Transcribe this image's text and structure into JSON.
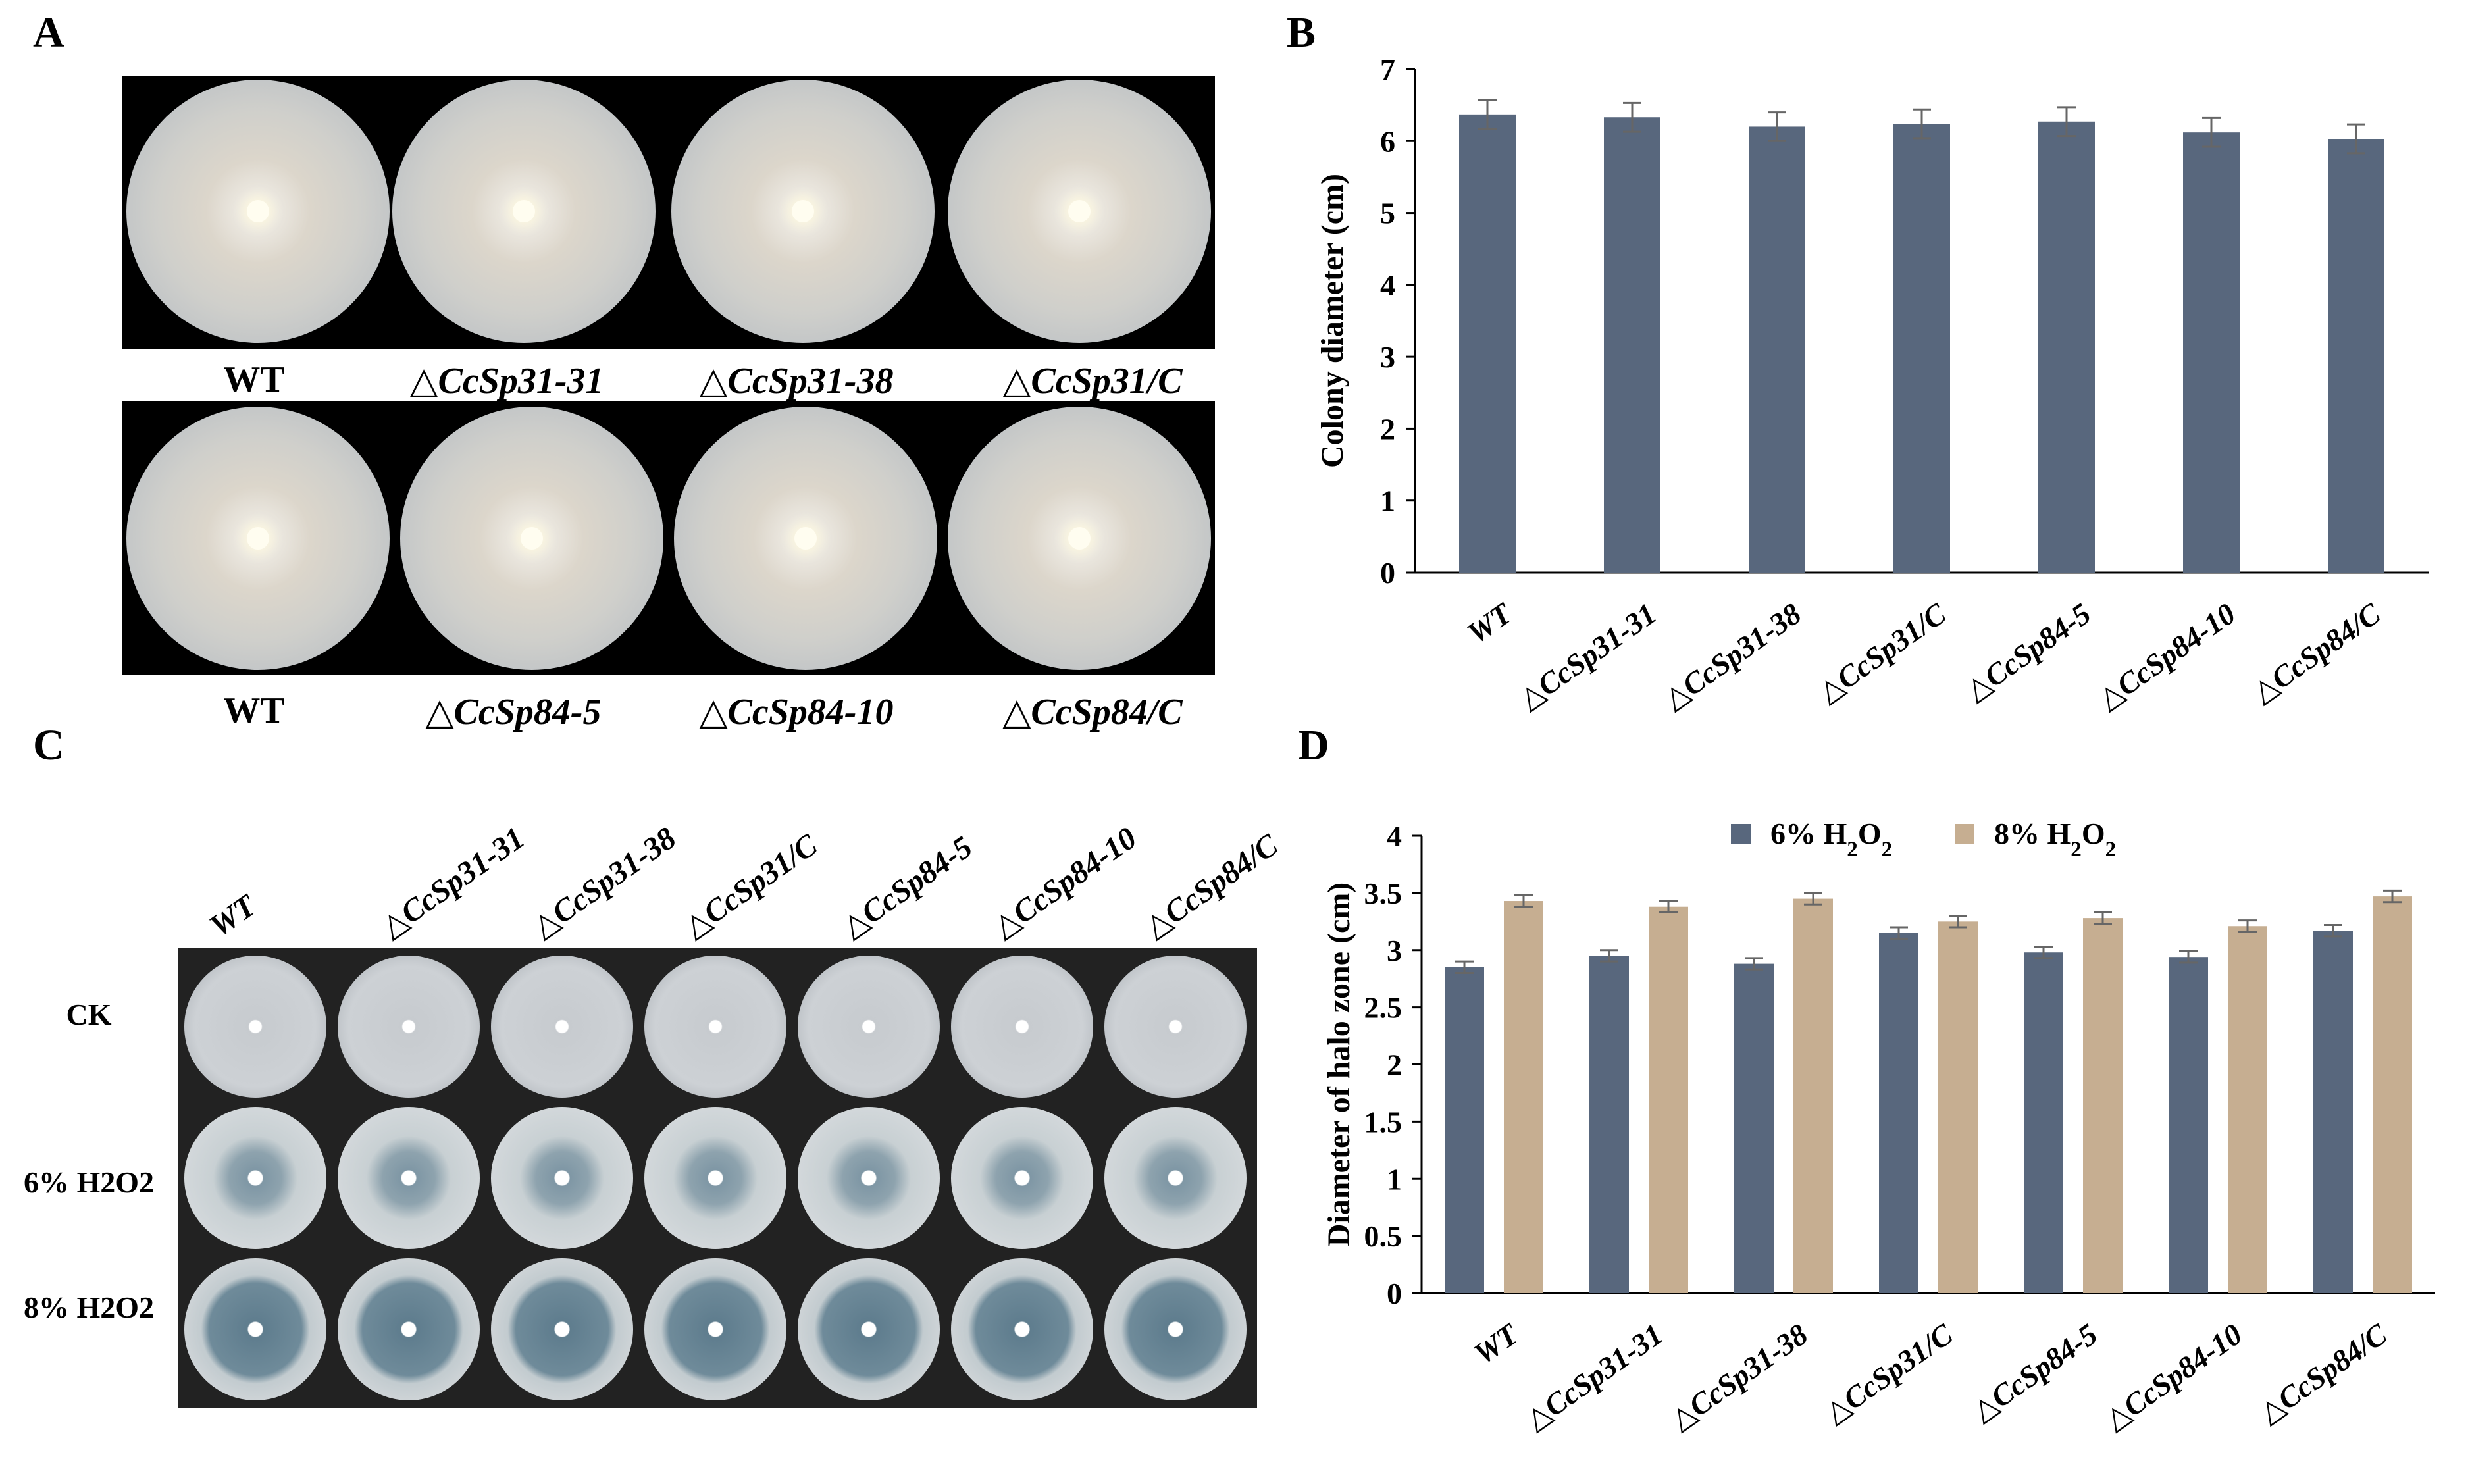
{
  "panels": {
    "A": {
      "label": "A",
      "row1_labels": [
        "WT",
        "△CcSp31-31",
        "△CcSp31-38",
        "△CcSp31/C"
      ],
      "row2_labels": [
        "WT",
        "△CcSp84-5",
        "△CcSp84-10",
        "△CcSp84/C"
      ]
    },
    "B": {
      "label": "B"
    },
    "C": {
      "label": "C",
      "columns": [
        "WT",
        "△CcSp31-31",
        "△CcSp31-38",
        "△CcSp31/C",
        "△CcSp84-5",
        "△CcSp84-10",
        "△CcSp84/C"
      ],
      "rows": [
        "CK",
        "6% H2O2",
        "8% H2O2"
      ]
    },
    "D": {
      "label": "D"
    }
  },
  "chart_data": [
    {
      "panel": "B",
      "type": "bar",
      "categories": [
        "WT",
        "△CcSp31-31",
        "△CcSp31-38",
        "△CcSp31/C",
        "△CcSp84-5",
        "△CcSp84-10",
        "△CcSp84/C"
      ],
      "series": [
        {
          "values": [
            6.37,
            6.33,
            6.2,
            6.24,
            6.27,
            6.12,
            6.03
          ],
          "errors": [
            0.2,
            0.2,
            0.2,
            0.2,
            0.2,
            0.2,
            0.2
          ],
          "color": "#58677d"
        }
      ],
      "ylabel": "Colony diameter (cm)",
      "ylim": [
        0,
        7
      ],
      "yticks": [
        "0",
        "1",
        "2",
        "3",
        "4",
        "5",
        "6",
        "7"
      ],
      "grid": false
    },
    {
      "panel": "D",
      "type": "bar",
      "categories": [
        "WT",
        "△CcSp31-31",
        "△CcSp31-38",
        "△CcSp31/C",
        "△CcSp84-5",
        "△CcSp84-10",
        "△CcSp84/C"
      ],
      "series": [
        {
          "name": "6% H2O2",
          "values": [
            2.85,
            2.95,
            2.88,
            3.15,
            2.98,
            2.94,
            3.17
          ],
          "errors": [
            0.05,
            0.05,
            0.05,
            0.05,
            0.05,
            0.05,
            0.05
          ],
          "color": "#58677d"
        },
        {
          "name": "8% H2O2",
          "values": [
            3.43,
            3.38,
            3.45,
            3.25,
            3.28,
            3.21,
            3.47
          ],
          "errors": [
            0.05,
            0.05,
            0.05,
            0.05,
            0.05,
            0.05,
            0.05
          ],
          "color": "#c6ae91"
        }
      ],
      "ylabel": "Diameter of halo zone (cm)",
      "ylim": [
        0,
        4
      ],
      "yticks": [
        "0",
        "0.5",
        "1",
        "1.5",
        "2",
        "2.5",
        "3",
        "3.5",
        "4"
      ],
      "legend": "top-center",
      "grid": false
    }
  ]
}
